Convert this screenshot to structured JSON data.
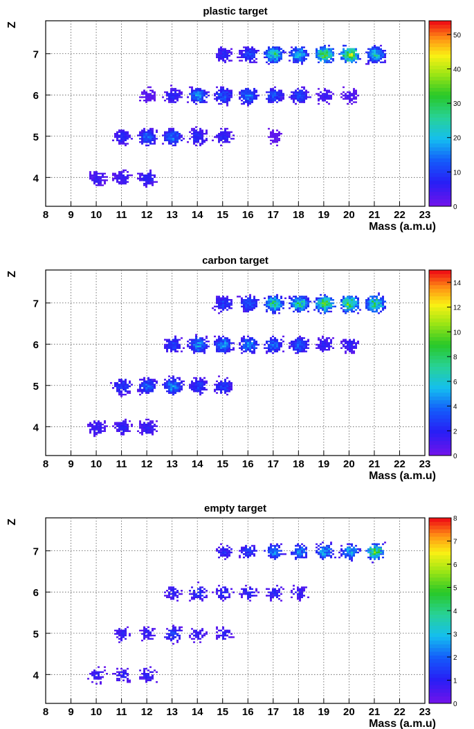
{
  "chart_data": [
    {
      "type": "heatmap",
      "title": "plastic target",
      "xlabel": "Mass (a.m.u)",
      "ylabel": "Z",
      "xlim": [
        8,
        23
      ],
      "ylim": [
        3.3,
        7.8
      ],
      "xticks": [
        "8",
        "9",
        "10",
        "11",
        "12",
        "13",
        "14",
        "15",
        "16",
        "17",
        "18",
        "19",
        "20",
        "21",
        "22",
        "23"
      ],
      "yticks": [
        "4",
        "5",
        "6",
        "7"
      ],
      "grid": true,
      "colorbar": {
        "range": [
          0,
          54
        ],
        "ticks": [
          "0",
          "10",
          "20",
          "30",
          "40",
          "50"
        ]
      },
      "clusters": [
        {
          "mass": 10,
          "z": 4,
          "count": 6
        },
        {
          "mass": 11,
          "z": 4,
          "count": 6
        },
        {
          "mass": 12,
          "z": 4,
          "count": 8
        },
        {
          "mass": 11,
          "z": 5,
          "count": 8
        },
        {
          "mass": 12,
          "z": 5,
          "count": 14
        },
        {
          "mass": 13,
          "z": 5,
          "count": 16
        },
        {
          "mass": 14,
          "z": 5,
          "count": 9
        },
        {
          "mass": 15,
          "z": 5,
          "count": 8
        },
        {
          "mass": 17,
          "z": 5,
          "count": 2
        },
        {
          "mass": 12,
          "z": 6,
          "count": 3
        },
        {
          "mass": 13,
          "z": 6,
          "count": 8
        },
        {
          "mass": 14,
          "z": 6,
          "count": 18
        },
        {
          "mass": 15,
          "z": 6,
          "count": 14
        },
        {
          "mass": 16,
          "z": 6,
          "count": 16
        },
        {
          "mass": 17,
          "z": 6,
          "count": 12
        },
        {
          "mass": 18,
          "z": 6,
          "count": 12
        },
        {
          "mass": 19,
          "z": 6,
          "count": 5
        },
        {
          "mass": 20,
          "z": 6,
          "count": 4
        },
        {
          "mass": 15,
          "z": 7,
          "count": 8
        },
        {
          "mass": 16,
          "z": 7,
          "count": 12
        },
        {
          "mass": 17,
          "z": 7,
          "count": 28
        },
        {
          "mass": 18,
          "z": 7,
          "count": 22
        },
        {
          "mass": 19,
          "z": 7,
          "count": 36
        },
        {
          "mass": 20,
          "z": 7,
          "count": 40
        },
        {
          "mass": 21,
          "z": 7,
          "count": 24
        }
      ]
    },
    {
      "type": "heatmap",
      "title": "carbon target",
      "xlabel": "Mass (a.m.u)",
      "ylabel": "Z",
      "xlim": [
        8,
        23
      ],
      "ylim": [
        3.3,
        7.8
      ],
      "xticks": [
        "8",
        "9",
        "10",
        "11",
        "12",
        "13",
        "14",
        "15",
        "16",
        "17",
        "18",
        "19",
        "20",
        "21",
        "22",
        "23"
      ],
      "yticks": [
        "4",
        "5",
        "6",
        "7"
      ],
      "grid": true,
      "colorbar": {
        "range": [
          0,
          15
        ],
        "ticks": [
          "0",
          "2",
          "4",
          "6",
          "8",
          "10",
          "12",
          "14"
        ]
      },
      "clusters": [
        {
          "mass": 10,
          "z": 4,
          "count": 2
        },
        {
          "mass": 11,
          "z": 4,
          "count": 2
        },
        {
          "mass": 12,
          "z": 4,
          "count": 2
        },
        {
          "mass": 11,
          "z": 5,
          "count": 3
        },
        {
          "mass": 12,
          "z": 5,
          "count": 4
        },
        {
          "mass": 13,
          "z": 5,
          "count": 5
        },
        {
          "mass": 14,
          "z": 5,
          "count": 3
        },
        {
          "mass": 15,
          "z": 5,
          "count": 3
        },
        {
          "mass": 13,
          "z": 6,
          "count": 3
        },
        {
          "mass": 14,
          "z": 6,
          "count": 5
        },
        {
          "mass": 15,
          "z": 6,
          "count": 5
        },
        {
          "mass": 16,
          "z": 6,
          "count": 5
        },
        {
          "mass": 17,
          "z": 6,
          "count": 4
        },
        {
          "mass": 18,
          "z": 6,
          "count": 4
        },
        {
          "mass": 19,
          "z": 6,
          "count": 2
        },
        {
          "mass": 20,
          "z": 6,
          "count": 2
        },
        {
          "mass": 15,
          "z": 7,
          "count": 3
        },
        {
          "mass": 16,
          "z": 7,
          "count": 4
        },
        {
          "mass": 17,
          "z": 7,
          "count": 8
        },
        {
          "mass": 18,
          "z": 7,
          "count": 8
        },
        {
          "mass": 19,
          "z": 7,
          "count": 10
        },
        {
          "mass": 20,
          "z": 7,
          "count": 10
        },
        {
          "mass": 21,
          "z": 7,
          "count": 9
        }
      ]
    },
    {
      "type": "heatmap",
      "title": "empty target",
      "xlabel": "Mass (a.m.u)",
      "ylabel": "Z",
      "xlim": [
        8,
        23
      ],
      "ylim": [
        3.3,
        7.8
      ],
      "xticks": [
        "8",
        "9",
        "10",
        "11",
        "12",
        "13",
        "14",
        "15",
        "16",
        "17",
        "18",
        "19",
        "20",
        "21",
        "22",
        "23"
      ],
      "yticks": [
        "4",
        "5",
        "6",
        "7"
      ],
      "grid": true,
      "colorbar": {
        "range": [
          0,
          8
        ],
        "ticks": [
          "0",
          "1",
          "2",
          "3",
          "4",
          "5",
          "6",
          "7",
          "8"
        ]
      },
      "clusters": [
        {
          "mass": 10,
          "z": 4,
          "count": 1
        },
        {
          "mass": 11,
          "z": 4,
          "count": 1
        },
        {
          "mass": 12,
          "z": 4,
          "count": 1
        },
        {
          "mass": 11,
          "z": 5,
          "count": 1
        },
        {
          "mass": 12,
          "z": 5,
          "count": 1
        },
        {
          "mass": 13,
          "z": 5,
          "count": 1.5
        },
        {
          "mass": 14,
          "z": 5,
          "count": 1
        },
        {
          "mass": 15,
          "z": 5,
          "count": 1
        },
        {
          "mass": 13,
          "z": 6,
          "count": 1
        },
        {
          "mass": 14,
          "z": 6,
          "count": 1.5
        },
        {
          "mass": 15,
          "z": 6,
          "count": 1.2
        },
        {
          "mass": 16,
          "z": 6,
          "count": 1.2
        },
        {
          "mass": 17,
          "z": 6,
          "count": 1.2
        },
        {
          "mass": 18,
          "z": 6,
          "count": 1
        },
        {
          "mass": 15,
          "z": 7,
          "count": 1.2
        },
        {
          "mass": 16,
          "z": 7,
          "count": 1.5
        },
        {
          "mass": 17,
          "z": 7,
          "count": 2.5
        },
        {
          "mass": 18,
          "z": 7,
          "count": 2.5
        },
        {
          "mass": 19,
          "z": 7,
          "count": 3
        },
        {
          "mass": 20,
          "z": 7,
          "count": 3
        },
        {
          "mass": 21,
          "z": 7,
          "count": 5
        }
      ]
    }
  ]
}
